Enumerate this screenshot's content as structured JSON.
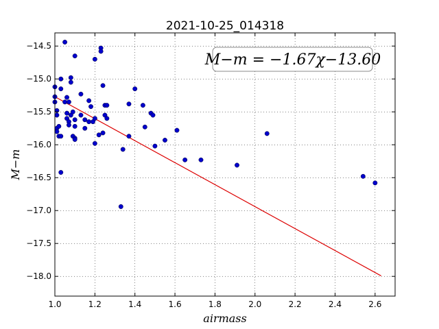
{
  "chart_data": {
    "type": "scatter",
    "title": "2021-10-25_014318",
    "xlabel": "airmass",
    "ylabel": "M−m",
    "xlim": [
      1.0,
      2.7
    ],
    "ylim": [
      -18.3,
      -14.3
    ],
    "xticks": [
      "1.0",
      "1.2",
      "1.4",
      "1.6",
      "1.8",
      "2.0",
      "2.2",
      "2.4",
      "2.6"
    ],
    "yticks": [
      "−14.5",
      "−15.0",
      "−15.5",
      "−16.0",
      "−16.5",
      "−17.0",
      "−17.5",
      "−18.0"
    ],
    "grid": true,
    "point_color": "#0000cc",
    "line_color": "#dd0000",
    "annotation": "M−m = −1.67χ−13.60",
    "fit": {
      "slope": -1.67,
      "intercept": -13.6,
      "x_range": [
        1.0,
        2.63
      ]
    },
    "points": [
      [
        1.0,
        -15.12
      ],
      [
        1.0,
        -15.27
      ],
      [
        1.0,
        -15.35
      ],
      [
        1.01,
        -15.48
      ],
      [
        1.01,
        -15.55
      ],
      [
        1.01,
        -15.75
      ],
      [
        1.01,
        -15.8
      ],
      [
        1.02,
        -15.72
      ],
      [
        1.02,
        -15.87
      ],
      [
        1.03,
        -15.0
      ],
      [
        1.03,
        -15.15
      ],
      [
        1.03,
        -15.87
      ],
      [
        1.03,
        -16.42
      ],
      [
        1.05,
        -14.44
      ],
      [
        1.05,
        -15.35
      ],
      [
        1.06,
        -15.28
      ],
      [
        1.06,
        -15.6
      ],
      [
        1.06,
        -15.52
      ],
      [
        1.07,
        -15.35
      ],
      [
        1.07,
        -15.65
      ],
      [
        1.07,
        -15.7
      ],
      [
        1.08,
        -15.55
      ],
      [
        1.08,
        -15.05
      ],
      [
        1.08,
        -14.98
      ],
      [
        1.09,
        -15.5
      ],
      [
        1.09,
        -15.87
      ],
      [
        1.1,
        -15.62
      ],
      [
        1.1,
        -15.72
      ],
      [
        1.1,
        -15.9
      ],
      [
        1.1,
        -15.92
      ],
      [
        1.1,
        -14.65
      ],
      [
        1.13,
        -15.23
      ],
      [
        1.13,
        -15.55
      ],
      [
        1.15,
        -15.62
      ],
      [
        1.15,
        -15.75
      ],
      [
        1.17,
        -15.33
      ],
      [
        1.17,
        -15.65
      ],
      [
        1.18,
        -15.42
      ],
      [
        1.19,
        -15.65
      ],
      [
        1.2,
        -15.6
      ],
      [
        1.2,
        -15.98
      ],
      [
        1.2,
        -14.7
      ],
      [
        1.22,
        -15.85
      ],
      [
        1.23,
        -14.53
      ],
      [
        1.23,
        -14.58
      ],
      [
        1.24,
        -15.1
      ],
      [
        1.24,
        -15.82
      ],
      [
        1.25,
        -15.4
      ],
      [
        1.25,
        -15.55
      ],
      [
        1.26,
        -15.4
      ],
      [
        1.26,
        -15.6
      ],
      [
        1.33,
        -16.94
      ],
      [
        1.34,
        -16.07
      ],
      [
        1.37,
        -15.38
      ],
      [
        1.37,
        -15.87
      ],
      [
        1.4,
        -15.15
      ],
      [
        1.44,
        -15.4
      ],
      [
        1.45,
        -15.73
      ],
      [
        1.48,
        -15.52
      ],
      [
        1.49,
        -15.55
      ],
      [
        1.5,
        -16.02
      ],
      [
        1.55,
        -15.93
      ],
      [
        1.61,
        -15.78
      ],
      [
        1.65,
        -16.23
      ],
      [
        1.73,
        -16.23
      ],
      [
        1.91,
        -16.31
      ],
      [
        2.06,
        -15.83
      ],
      [
        2.54,
        -16.48
      ],
      [
        2.6,
        -16.58
      ]
    ]
  }
}
